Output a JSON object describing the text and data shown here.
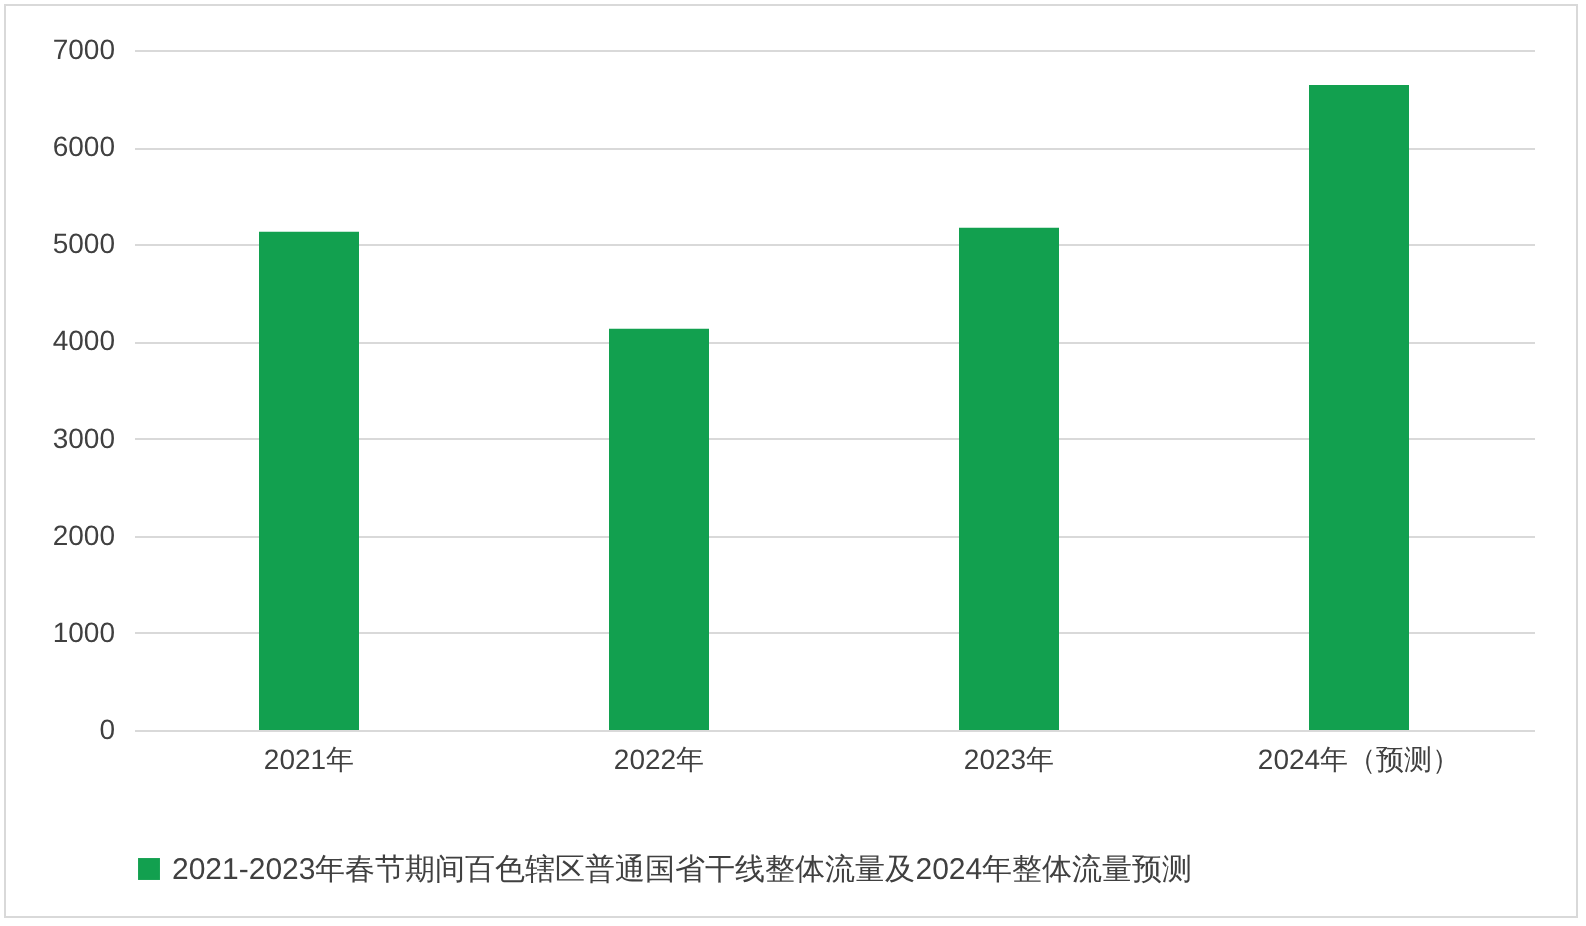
{
  "chart_data": {
    "type": "bar",
    "categories": [
      "2021年",
      "2022年",
      "2023年",
      "2024年（预测）"
    ],
    "series": [
      {
        "name": "2021-2023年春节期间百色辖区普通国省干线整体流量及2024年整体流量预测",
        "color": "#12a04f",
        "values": [
          5130,
          4130,
          5170,
          6640
        ]
      }
    ],
    "ylim": [
      0,
      7000
    ],
    "yticks": [
      0,
      1000,
      2000,
      3000,
      4000,
      5000,
      6000,
      7000
    ],
    "grid": "y",
    "legend": "bottom"
  }
}
